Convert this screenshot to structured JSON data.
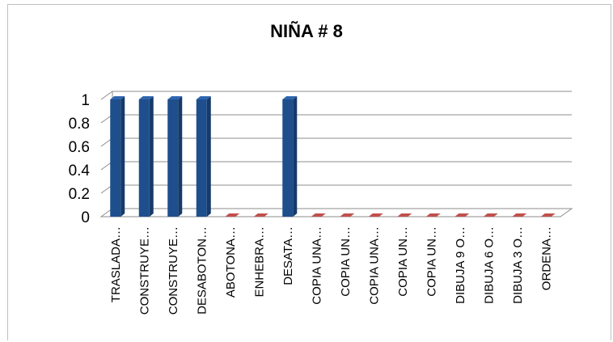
{
  "chart_data": {
    "type": "bar",
    "title": "NIÑA # 8",
    "categories": [
      "TRASLADA…",
      "CONSTRUYE…",
      "CONSTRUYE…",
      "DESABOTON…",
      "ABOTONA…",
      "ENHEBRA…",
      "DESATA…",
      "COPIA UNA…",
      "COPIA UN…",
      "COPIA UNA…",
      "COPIA UN…",
      "COPIA UN…",
      "DIBUJA 9 O…",
      "DIBUJA 6 O…",
      "DIBUJA 3 O…",
      "ORDENA…"
    ],
    "values": [
      1,
      1,
      1,
      1,
      0,
      0,
      1,
      0,
      0,
      0,
      0,
      0,
      0,
      0,
      0,
      0
    ],
    "yticks": [
      "0",
      "0.2",
      "0.4",
      "0.6",
      "0.8",
      "1"
    ],
    "ylim": [
      0,
      1
    ],
    "grid": true,
    "legend": "none",
    "colors": {
      "bar_front": "#1f4e8c",
      "bar_side": "#163a6a",
      "bar_top": "#2e66b0",
      "zero_marker": "#c0504d",
      "grid": "#8c8c8c"
    }
  }
}
